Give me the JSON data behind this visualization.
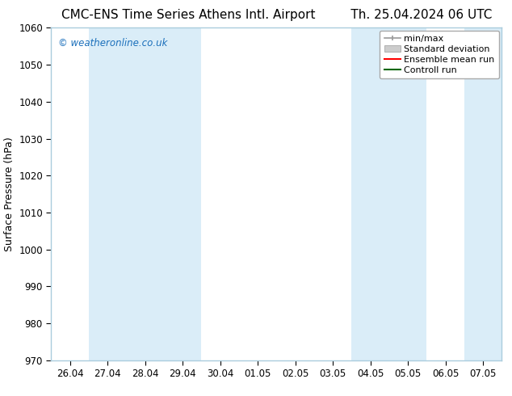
{
  "title_left": "CMC-ENS Time Series Athens Intl. Airport",
  "title_right": "Th. 25.04.2024 06 UTC",
  "ylabel": "Surface Pressure (hPa)",
  "ylim": [
    970,
    1060
  ],
  "yticks": [
    970,
    980,
    990,
    1000,
    1010,
    1020,
    1030,
    1040,
    1050,
    1060
  ],
  "x_tick_labels": [
    "26.04",
    "27.04",
    "28.04",
    "29.04",
    "30.04",
    "01.05",
    "02.05",
    "03.05",
    "04.05",
    "05.05",
    "06.05",
    "07.05"
  ],
  "x_tick_positions": [
    0,
    1,
    2,
    3,
    4,
    5,
    6,
    7,
    8,
    9,
    10,
    11
  ],
  "xlim": [
    -0.5,
    11.5
  ],
  "shaded_bands": [
    {
      "x_start": 0.5,
      "x_end": 1.5,
      "color": "#daedf8"
    },
    {
      "x_start": 1.5,
      "x_end": 2.5,
      "color": "#daedf8"
    },
    {
      "x_start": 2.5,
      "x_end": 3.5,
      "color": "#daedf8"
    },
    {
      "x_start": 7.5,
      "x_end": 8.5,
      "color": "#daedf8"
    },
    {
      "x_start": 8.5,
      "x_end": 9.5,
      "color": "#daedf8"
    },
    {
      "x_start": 10.5,
      "x_end": 11.5,
      "color": "#daedf8"
    }
  ],
  "watermark_text": "© weatheronline.co.uk",
  "watermark_color": "#1a6fbb",
  "background_color": "#ffffff",
  "plot_bg_color": "#ffffff",
  "frame_color": "#aaccdd",
  "title_fontsize": 11,
  "axis_fontsize": 9,
  "tick_fontsize": 8.5,
  "legend_fontsize": 8
}
